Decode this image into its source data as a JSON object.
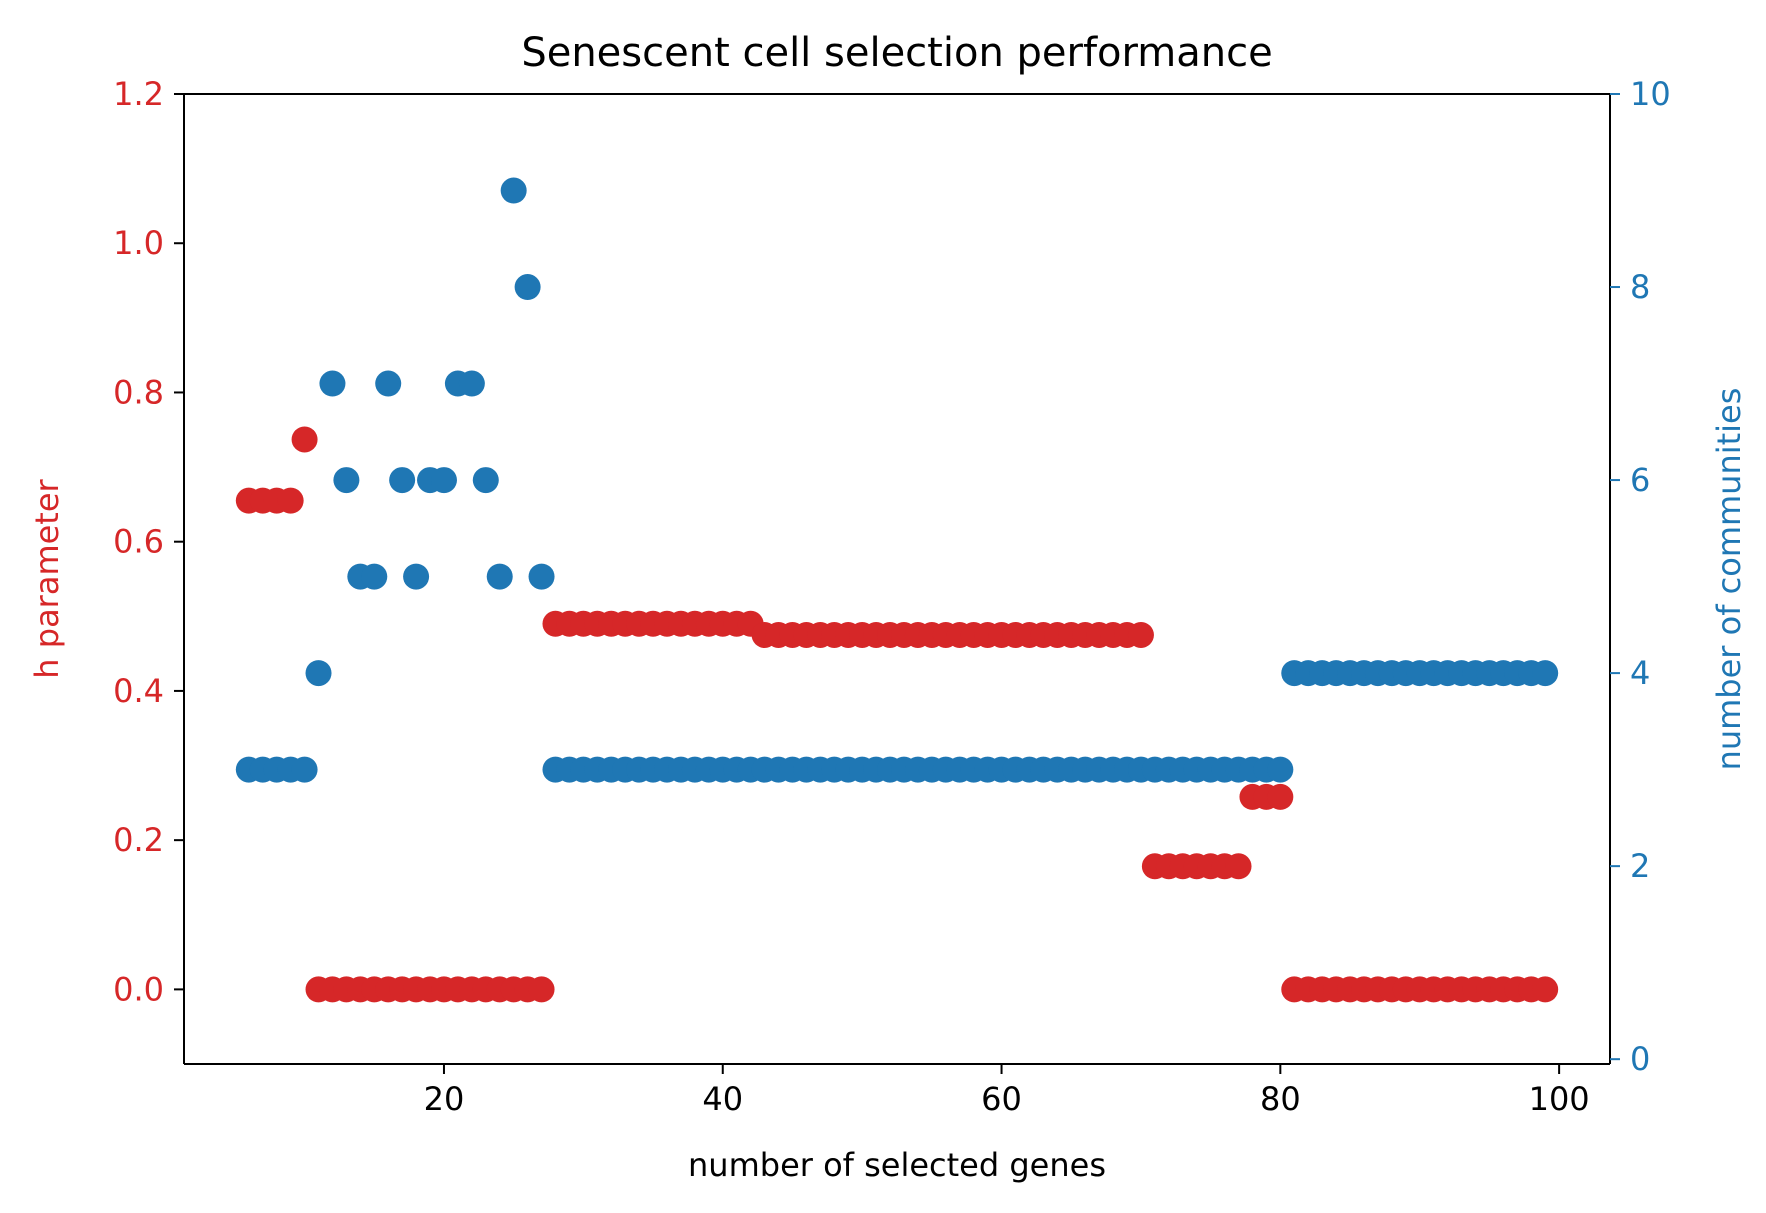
{
  "chart_data": {
    "type": "scatter",
    "title": "Senescent cell selection performance",
    "xlabel": "number of selected genes",
    "ylabel_left": "h parameter",
    "ylabel_right": "number of communities",
    "xlim": [
      1.35,
      103.65
    ],
    "ylim_left": [
      -0.1,
      1.2
    ],
    "ylim_right": [
      -0.05,
      10
    ],
    "x_ticks": [
      20,
      40,
      60,
      80,
      100
    ],
    "y_ticks_left": [
      0.0,
      0.2,
      0.4,
      0.6,
      0.8,
      1.0,
      1.2
    ],
    "y_ticks_right": [
      0,
      2,
      4,
      6,
      8,
      10
    ],
    "grid": false,
    "legend": "none",
    "colors": {
      "h_parameter": "#d62728",
      "communities": "#1f77b4",
      "axes": "#000000"
    },
    "series": [
      {
        "axis": "left",
        "color": "#d62728",
        "x": [
          6,
          7,
          8,
          9,
          10,
          11,
          12,
          13,
          14,
          15,
          16,
          17,
          18,
          19,
          20,
          21,
          22,
          23,
          24,
          25,
          26,
          27,
          28,
          29,
          30,
          31,
          32,
          33,
          34,
          35,
          36,
          37,
          38,
          39,
          40,
          41,
          42,
          43,
          44,
          45,
          46,
          47,
          48,
          49,
          50,
          51,
          52,
          53,
          54,
          55,
          56,
          57,
          58,
          59,
          60,
          61,
          62,
          63,
          64,
          65,
          66,
          67,
          68,
          69,
          70,
          71,
          72,
          73,
          74,
          75,
          76,
          77,
          78,
          79,
          80,
          81,
          82,
          83,
          84,
          85,
          86,
          87,
          88,
          89,
          90,
          91,
          92,
          93,
          94,
          95,
          96,
          97,
          98,
          99
        ],
        "y": [
          0.655,
          0.655,
          0.655,
          0.655,
          0.737,
          0,
          0,
          0,
          0,
          0,
          0,
          0,
          0,
          0,
          0,
          0,
          0,
          0,
          0,
          0,
          0,
          0,
          0.49,
          0.49,
          0.49,
          0.49,
          0.49,
          0.49,
          0.49,
          0.49,
          0.49,
          0.49,
          0.49,
          0.49,
          0.49,
          0.49,
          0.49,
          0.475,
          0.475,
          0.475,
          0.475,
          0.475,
          0.475,
          0.475,
          0.475,
          0.475,
          0.475,
          0.475,
          0.475,
          0.475,
          0.475,
          0.475,
          0.475,
          0.475,
          0.475,
          0.475,
          0.475,
          0.475,
          0.475,
          0.475,
          0.475,
          0.475,
          0.475,
          0.475,
          0.475,
          0.165,
          0.165,
          0.165,
          0.165,
          0.165,
          0.165,
          0.165,
          0.258,
          0.258,
          0.258,
          0,
          0,
          0,
          0,
          0,
          0,
          0,
          0,
          0,
          0,
          0,
          0,
          0,
          0,
          0,
          0,
          0,
          0,
          0
        ]
      },
      {
        "axis": "right",
        "color": "#1f77b4",
        "x": [
          6,
          7,
          8,
          9,
          10,
          11,
          12,
          13,
          14,
          15,
          16,
          17,
          18,
          19,
          20,
          21,
          22,
          23,
          24,
          25,
          26,
          27,
          28,
          29,
          30,
          31,
          32,
          33,
          34,
          35,
          36,
          37,
          38,
          39,
          40,
          41,
          42,
          43,
          44,
          45,
          46,
          47,
          48,
          49,
          50,
          51,
          52,
          53,
          54,
          55,
          56,
          57,
          58,
          59,
          60,
          61,
          62,
          63,
          64,
          65,
          66,
          67,
          68,
          69,
          70,
          71,
          72,
          73,
          74,
          75,
          76,
          77,
          78,
          79,
          80,
          81,
          82,
          83,
          84,
          85,
          86,
          87,
          88,
          89,
          90,
          91,
          92,
          93,
          94,
          95,
          96,
          97,
          98,
          99
        ],
        "y": [
          3,
          3,
          3,
          3,
          3,
          4,
          7,
          6,
          5,
          5,
          7,
          6,
          5,
          6,
          6,
          7,
          7,
          6,
          5,
          9,
          8,
          5,
          3,
          3,
          3,
          3,
          3,
          3,
          3,
          3,
          3,
          3,
          3,
          3,
          3,
          3,
          3,
          3,
          3,
          3,
          3,
          3,
          3,
          3,
          3,
          3,
          3,
          3,
          3,
          3,
          3,
          3,
          3,
          3,
          3,
          3,
          3,
          3,
          3,
          3,
          3,
          3,
          3,
          3,
          3,
          3,
          3,
          3,
          3,
          3,
          3,
          3,
          3,
          3,
          3,
          4,
          4,
          4,
          4,
          4,
          4,
          4,
          4,
          4,
          4,
          4,
          4,
          4,
          4,
          4,
          4,
          4,
          4,
          4
        ]
      }
    ]
  }
}
